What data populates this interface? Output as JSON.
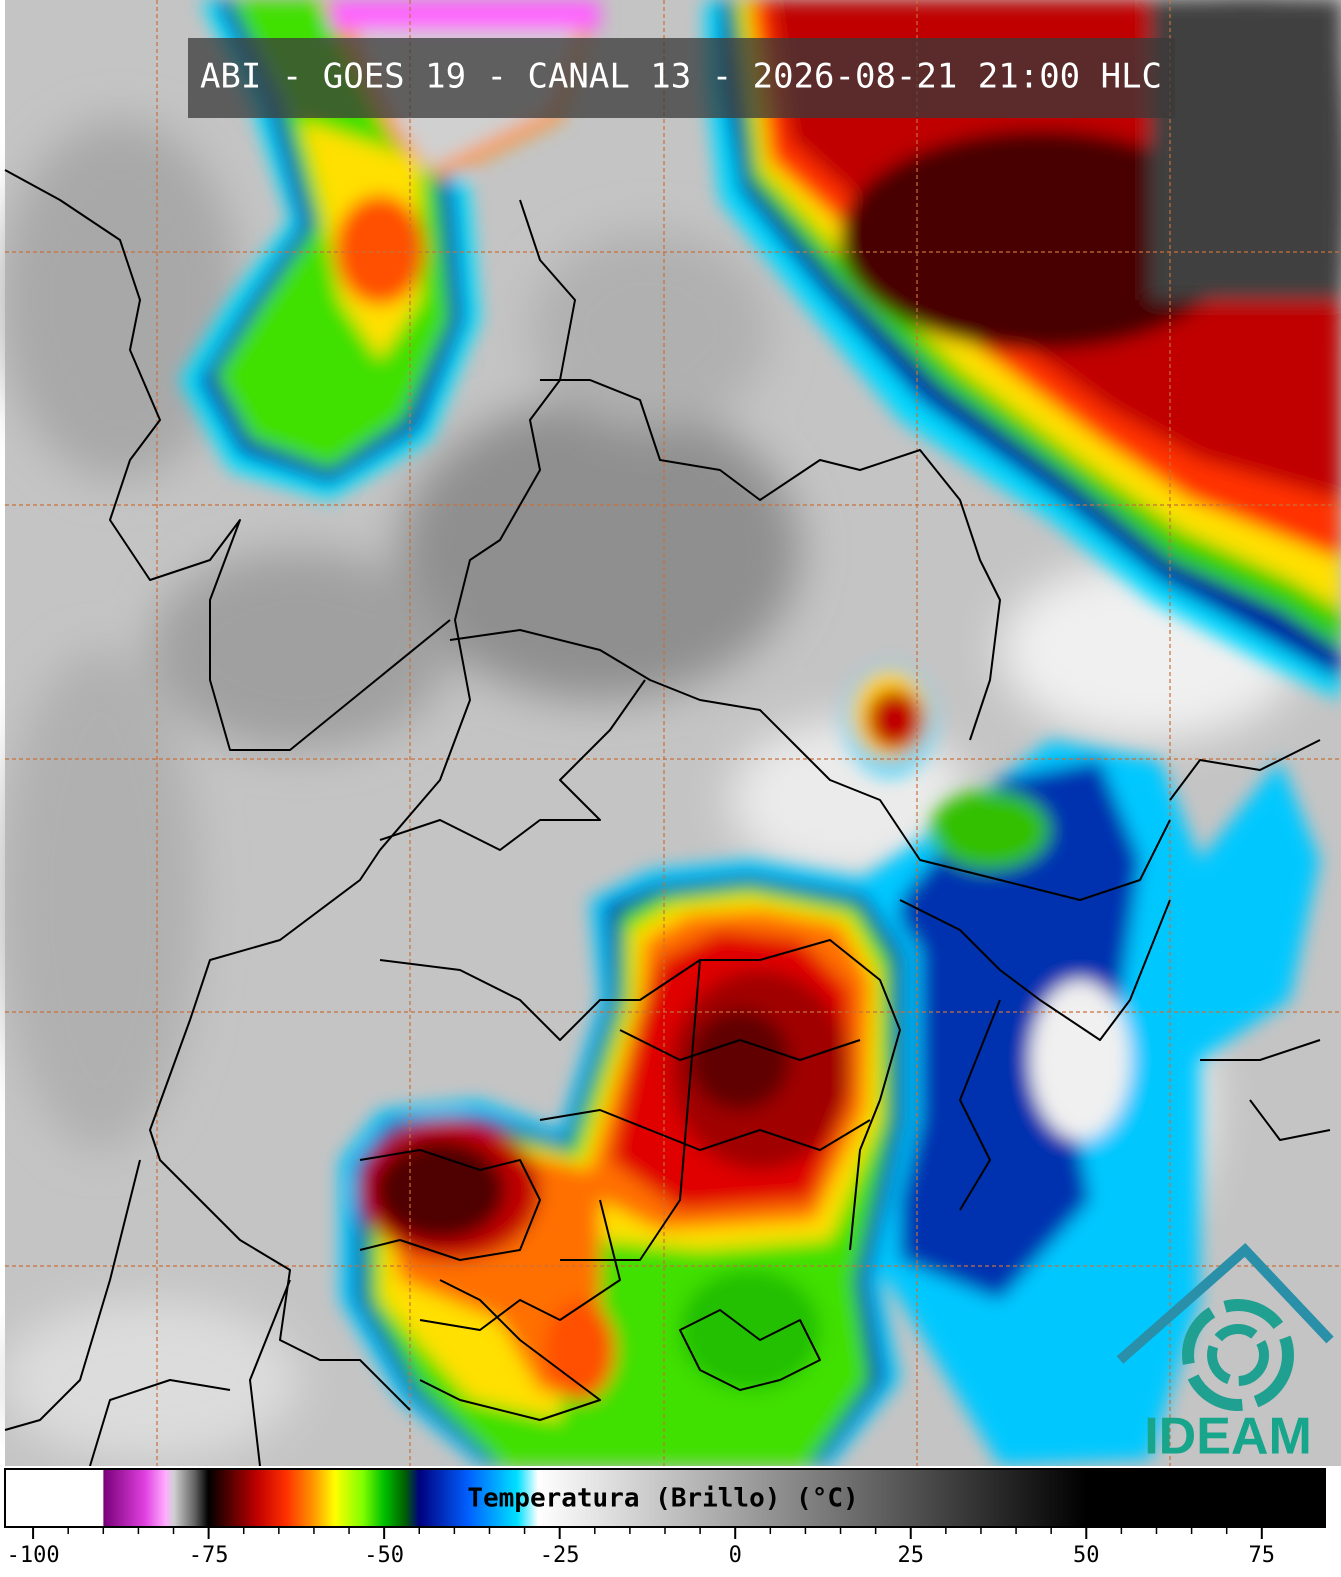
{
  "header": {
    "title": "ABI - GOES 19 - CANAL 13 - 2026-08-21 21:00 HLC"
  },
  "colorbar": {
    "label": "Temperatura (Brillo) (°C)",
    "lim": [
      -104,
      84
    ],
    "ticks": [
      -100,
      -75,
      -50,
      -25,
      0,
      25,
      50,
      75
    ]
  },
  "logo": {
    "text": "IDEAM"
  }
}
